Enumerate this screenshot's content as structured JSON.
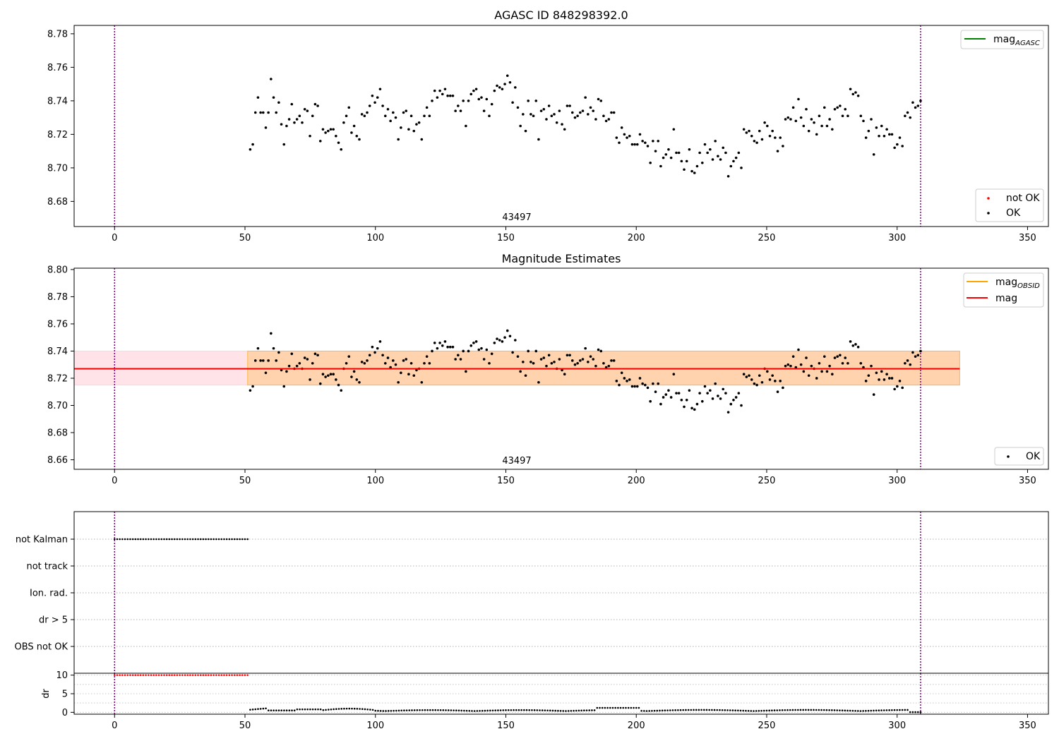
{
  "chart_data": [
    {
      "type": "scatter",
      "title": "AGASC ID 848298392.0",
      "xlim": [
        -15.5,
        358
      ],
      "ylim": [
        8.665,
        8.785
      ],
      "xticks": [
        0,
        50,
        100,
        150,
        200,
        250,
        300,
        350
      ],
      "yticks": [
        "8.68",
        "8.70",
        "8.72",
        "8.74",
        "8.76",
        "8.78"
      ],
      "vlines": [
        0,
        309
      ],
      "annotation": {
        "text": "43497",
        "x": 155,
        "y": 8.669
      },
      "legend_lines": [
        {
          "label": "mag",
          "sub": "AGASC",
          "color": "#008000"
        }
      ],
      "legend_markers": [
        {
          "label": "not OK",
          "color": "#ff0000"
        },
        {
          "label": "OK",
          "color": "#000000"
        }
      ],
      "series": [
        {
          "name": "OK",
          "color": "#000000",
          "x_start": 52,
          "x_end": 309,
          "y": [
            8.711,
            8.714,
            8.733,
            8.742,
            8.733,
            8.733,
            8.724,
            8.733,
            8.753,
            8.742,
            8.733,
            8.739,
            8.726,
            8.714,
            8.725,
            8.729,
            8.738,
            8.727,
            8.729,
            8.731,
            8.727,
            8.735,
            8.734,
            8.719,
            8.731,
            8.738,
            8.737,
            8.716,
            8.723,
            8.721,
            8.722,
            8.723,
            8.723,
            8.719,
            8.715,
            8.711,
            8.727,
            8.731,
            8.736,
            8.721,
            8.725,
            8.719,
            8.717,
            8.732,
            8.731,
            8.733,
            8.737,
            8.743,
            8.739,
            8.742,
            8.747,
            8.737,
            8.731,
            8.735,
            8.728,
            8.733,
            8.73,
            8.717,
            8.724,
            8.733,
            8.734,
            8.723,
            8.731,
            8.722,
            8.726,
            8.727,
            8.717,
            8.731,
            8.736,
            8.731,
            8.74,
            8.746,
            8.742,
            8.746,
            8.744,
            8.747,
            8.743,
            8.743,
            8.743,
            8.734,
            8.737,
            8.734,
            8.74,
            8.725,
            8.74,
            8.744,
            8.746,
            8.747,
            8.741,
            8.742,
            8.734,
            8.741,
            8.731,
            8.738,
            8.746,
            8.749,
            8.748,
            8.747,
            8.75,
            8.755,
            8.751,
            8.739,
            8.748,
            8.736,
            8.725,
            8.732,
            8.722,
            8.74,
            8.732,
            8.731,
            8.74,
            8.717,
            8.734,
            8.735,
            8.729,
            8.737,
            8.731,
            8.732,
            8.727,
            8.734,
            8.726,
            8.723,
            8.737,
            8.737,
            8.733,
            8.73,
            8.731,
            8.733,
            8.734,
            8.742,
            8.732,
            8.736,
            8.734,
            8.729,
            8.741,
            8.74,
            8.731,
            8.728,
            8.729,
            8.733,
            8.733,
            8.718,
            8.715,
            8.724,
            8.72,
            8.718,
            8.719,
            8.714,
            8.714,
            8.714,
            8.72,
            8.716,
            8.715,
            8.713,
            8.703,
            8.716,
            8.71,
            8.716,
            8.701,
            8.706,
            8.708,
            8.711,
            8.706,
            8.723,
            8.709,
            8.709,
            8.704,
            8.699,
            8.704,
            8.711,
            8.698,
            8.697,
            8.701,
            8.709,
            8.703,
            8.714,
            8.709,
            8.711,
            8.705,
            8.716,
            8.707,
            8.705,
            8.712,
            8.709,
            8.695,
            8.701,
            8.704,
            8.706,
            8.709,
            8.7,
            8.723,
            8.721,
            8.722,
            8.719,
            8.716,
            8.715,
            8.722,
            8.717,
            8.727,
            8.725,
            8.719,
            8.722,
            8.718,
            8.71,
            8.718,
            8.713,
            8.729,
            8.73,
            8.729,
            8.736,
            8.728,
            8.741,
            8.73,
            8.725,
            8.735,
            8.722,
            8.729,
            8.727,
            8.72,
            8.731,
            8.725,
            8.736,
            8.725,
            8.729,
            8.723,
            8.735,
            8.736,
            8.737,
            8.731,
            8.735,
            8.731,
            8.747,
            8.744,
            8.745,
            8.743,
            8.731,
            8.728,
            8.718,
            8.722,
            8.729,
            8.708,
            8.724,
            8.719,
            8.725,
            8.719,
            8.723,
            8.72,
            8.72,
            8.712,
            8.714,
            8.718,
            8.713,
            8.731,
            8.733,
            8.73,
            8.739,
            8.736,
            8.737,
            8.74
          ]
        }
      ]
    },
    {
      "type": "scatter",
      "title": "Magnitude Estimates",
      "xlim": [
        -15.5,
        358
      ],
      "ylim": [
        8.653,
        8.801
      ],
      "xticks": [
        0,
        50,
        100,
        150,
        200,
        250,
        300,
        350
      ],
      "yticks": [
        "8.66",
        "8.68",
        "8.70",
        "8.72",
        "8.74",
        "8.76",
        "8.78",
        "8.80"
      ],
      "vlines": [
        0,
        309
      ],
      "annotation": {
        "text": "43497",
        "x": 155,
        "y": 8.6565
      },
      "mag": 8.727,
      "bands": [
        {
          "x0": -15.5,
          "x1": 324,
          "y0": 8.715,
          "y1": 8.74,
          "color": "#ffc0cb",
          "opacity": 0.45
        },
        {
          "x0": 51,
          "x1": 324,
          "y0": 8.715,
          "y1": 8.74,
          "color": "#ffa500",
          "opacity": 0.25
        }
      ],
      "lines": [
        {
          "name": "mag_OBSID",
          "x0": 51,
          "x1": 324,
          "y": 8.727,
          "color": "#ffa500"
        },
        {
          "name": "mag",
          "x0": -15.5,
          "x1": 324,
          "y": 8.727,
          "color": "#ff0000"
        }
      ],
      "legend_lines": [
        {
          "label": "mag",
          "sub": "OBSID",
          "color": "#ffa500"
        },
        {
          "label": "mag",
          "sub": "",
          "color": "#ff0000"
        }
      ],
      "legend_markers": [
        {
          "label": "OK",
          "color": "#000000"
        }
      ]
    },
    {
      "type": "scatter",
      "xlim": [
        -15.5,
        358
      ],
      "categories": [
        "not Kalman",
        "not track",
        "Ion. rad.",
        "dr > 5",
        "OBS not OK"
      ],
      "vlines": [
        0,
        309
      ],
      "flag_points": {
        "category": "not Kalman",
        "x_start": 0,
        "x_end": 51,
        "color": "#000000"
      }
    },
    {
      "type": "scatter",
      "ylabel": "dr",
      "xlim": [
        -15.5,
        358
      ],
      "ylim": [
        -0.5,
        10.5
      ],
      "xticks": [
        0,
        50,
        100,
        150,
        200,
        250,
        300,
        350
      ],
      "yticks": [
        "0",
        "5",
        "10"
      ],
      "vlines": [
        0,
        309
      ],
      "series": [
        {
          "name": "not OK",
          "color": "#ff0000",
          "x_start": 0,
          "x_end": 51,
          "y_const": 10
        },
        {
          "name": "OK",
          "color": "#000000",
          "x_start": 52,
          "x_end": 309
        }
      ]
    }
  ]
}
